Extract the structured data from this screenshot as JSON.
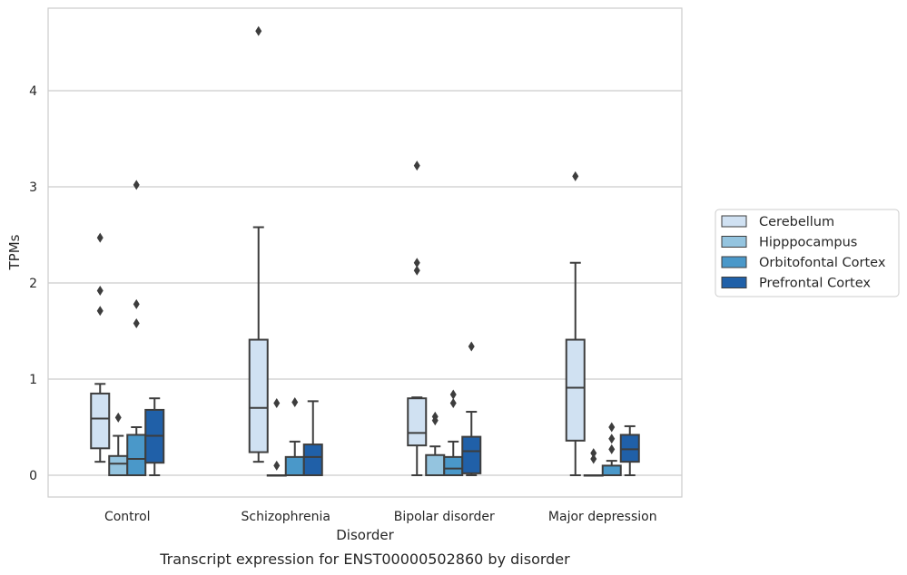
{
  "chart_data": {
    "type": "box",
    "title": "",
    "caption": "Transcript expression for ENST00000502860 by disorder",
    "xlabel": "Disorder",
    "ylabel": "TPMs",
    "ylim": [
      -0.22,
      4.86
    ],
    "yticks": [
      0,
      1,
      2,
      3,
      4
    ],
    "grid": "horizontal",
    "legend_position": "right",
    "categories": [
      "Control",
      "Schizophrenia",
      "Bipolar disorder",
      "Major depression"
    ],
    "series": [
      {
        "name": "Cerebellum",
        "color": "#d0e1f2",
        "boxes": [
          {
            "q1": 0.28,
            "median": 0.59,
            "q3": 0.85,
            "whislo": 0.14,
            "whishi": 0.95,
            "fliers": [
              1.71,
              1.92,
              2.47
            ]
          },
          {
            "q1": 0.24,
            "median": 0.7,
            "q3": 1.41,
            "whislo": 0.14,
            "whishi": 2.58,
            "fliers": [
              4.62
            ]
          },
          {
            "q1": 0.31,
            "median": 0.44,
            "q3": 0.8,
            "whislo": 0.0,
            "whishi": 0.81,
            "fliers": [
              2.13,
              2.21,
              3.22
            ]
          },
          {
            "q1": 0.36,
            "median": 0.91,
            "q3": 1.41,
            "whislo": 0.0,
            "whishi": 2.21,
            "fliers": [
              3.11
            ]
          }
        ]
      },
      {
        "name": "Hipppocampus",
        "color": "#94c4df",
        "boxes": [
          {
            "q1": 0.0,
            "median": 0.12,
            "q3": 0.2,
            "whislo": 0.0,
            "whishi": 0.41,
            "fliers": [
              0.6
            ]
          },
          {
            "q1": 0.0,
            "median": 0.0,
            "q3": 0.0,
            "whislo": 0.0,
            "whishi": 0.0,
            "fliers": [
              0.1,
              0.75
            ]
          },
          {
            "q1": 0.0,
            "median": 0.0,
            "q3": 0.21,
            "whislo": 0.0,
            "whishi": 0.3,
            "fliers": [
              0.57,
              0.61
            ]
          },
          {
            "q1": 0.0,
            "median": 0.0,
            "q3": 0.0,
            "whislo": 0.0,
            "whishi": 0.0,
            "fliers": [
              0.17,
              0.23
            ]
          }
        ]
      },
      {
        "name": "Orbitofontal Cortex",
        "color": "#4a98c9",
        "boxes": [
          {
            "q1": 0.0,
            "median": 0.17,
            "q3": 0.42,
            "whislo": 0.0,
            "whishi": 0.5,
            "fliers": [
              1.58,
              1.78,
              3.02
            ]
          },
          {
            "q1": 0.0,
            "median": 0.0,
            "q3": 0.19,
            "whislo": 0.0,
            "whishi": 0.35,
            "fliers": [
              0.76
            ]
          },
          {
            "q1": 0.0,
            "median": 0.07,
            "q3": 0.19,
            "whislo": 0.0,
            "whishi": 0.35,
            "fliers": [
              0.75,
              0.84
            ]
          },
          {
            "q1": 0.0,
            "median": 0.0,
            "q3": 0.1,
            "whislo": 0.0,
            "whishi": 0.15,
            "fliers": [
              0.27,
              0.38,
              0.5
            ]
          }
        ]
      },
      {
        "name": "Prefrontal Cortex",
        "color": "#2060a8",
        "boxes": [
          {
            "q1": 0.13,
            "median": 0.41,
            "q3": 0.68,
            "whislo": 0.0,
            "whishi": 0.8,
            "fliers": []
          },
          {
            "q1": 0.0,
            "median": 0.19,
            "q3": 0.32,
            "whislo": 0.0,
            "whishi": 0.77,
            "fliers": []
          },
          {
            "q1": 0.02,
            "median": 0.25,
            "q3": 0.4,
            "whislo": 0.0,
            "whishi": 0.66,
            "fliers": [
              1.34
            ]
          },
          {
            "q1": 0.14,
            "median": 0.27,
            "q3": 0.42,
            "whislo": 0.0,
            "whishi": 0.51,
            "fliers": []
          }
        ]
      }
    ]
  }
}
